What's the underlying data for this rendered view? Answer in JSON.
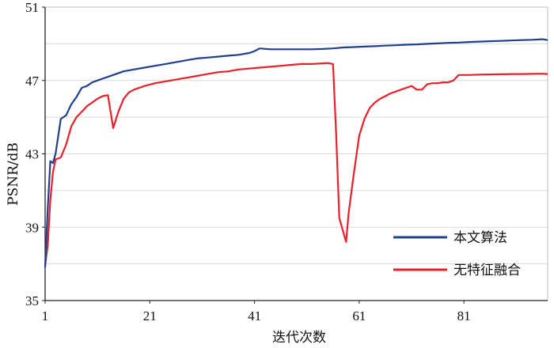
{
  "chart_data": {
    "type": "line",
    "title": "",
    "xlabel": "迭代次数",
    "ylabel": "PSNR/dB",
    "xlim": [
      1,
      97
    ],
    "ylim": [
      35,
      51
    ],
    "xticks": [
      1,
      21,
      41,
      61,
      81
    ],
    "yticks": [
      35,
      39,
      43,
      47,
      51
    ],
    "grid": "horizontal",
    "legend": "bottom-right",
    "series": [
      {
        "name": "本文算法",
        "color": "#1f3f8f",
        "points": [
          [
            1,
            36.8
          ],
          [
            1.5,
            40.0
          ],
          [
            2,
            42.6
          ],
          [
            2.5,
            42.5
          ],
          [
            3,
            43.0
          ],
          [
            4,
            44.9
          ],
          [
            5,
            45.1
          ],
          [
            6,
            45.7
          ],
          [
            7,
            46.1
          ],
          [
            8,
            46.6
          ],
          [
            9,
            46.7
          ],
          [
            10,
            46.9
          ],
          [
            12,
            47.1
          ],
          [
            14,
            47.3
          ],
          [
            16,
            47.5
          ],
          [
            18,
            47.6
          ],
          [
            20,
            47.7
          ],
          [
            22,
            47.8
          ],
          [
            24,
            47.9
          ],
          [
            26,
            48.0
          ],
          [
            28,
            48.1
          ],
          [
            30,
            48.2
          ],
          [
            32,
            48.25
          ],
          [
            34,
            48.3
          ],
          [
            36,
            48.35
          ],
          [
            38,
            48.4
          ],
          [
            40,
            48.5
          ],
          [
            41,
            48.6
          ],
          [
            42,
            48.75
          ],
          [
            44,
            48.7
          ],
          [
            46,
            48.7
          ],
          [
            48,
            48.7
          ],
          [
            50,
            48.7
          ],
          [
            52,
            48.7
          ],
          [
            54,
            48.72
          ],
          [
            56,
            48.75
          ],
          [
            58,
            48.8
          ],
          [
            60,
            48.82
          ],
          [
            62,
            48.85
          ],
          [
            64,
            48.87
          ],
          [
            66,
            48.9
          ],
          [
            68,
            48.92
          ],
          [
            70,
            48.95
          ],
          [
            72,
            48.97
          ],
          [
            74,
            49.0
          ],
          [
            76,
            49.02
          ],
          [
            78,
            49.05
          ],
          [
            80,
            49.07
          ],
          [
            82,
            49.1
          ],
          [
            84,
            49.12
          ],
          [
            86,
            49.14
          ],
          [
            88,
            49.16
          ],
          [
            90,
            49.18
          ],
          [
            92,
            49.2
          ],
          [
            94,
            49.22
          ],
          [
            96,
            49.25
          ],
          [
            97,
            49.2
          ]
        ]
      },
      {
        "name": "无特征融合",
        "color": "#e8202a",
        "points": [
          [
            1,
            36.9
          ],
          [
            1.5,
            38.0
          ],
          [
            2,
            40.5
          ],
          [
            2.5,
            42.0
          ],
          [
            3,
            42.7
          ],
          [
            4,
            42.8
          ],
          [
            5,
            43.5
          ],
          [
            6,
            44.5
          ],
          [
            7,
            45.0
          ],
          [
            8,
            45.3
          ],
          [
            9,
            45.6
          ],
          [
            10,
            45.8
          ],
          [
            11,
            46.0
          ],
          [
            12,
            46.15
          ],
          [
            13,
            46.2
          ],
          [
            14,
            44.4
          ],
          [
            15,
            45.3
          ],
          [
            16,
            46.0
          ],
          [
            17,
            46.35
          ],
          [
            18,
            46.5
          ],
          [
            20,
            46.7
          ],
          [
            22,
            46.85
          ],
          [
            24,
            46.95
          ],
          [
            26,
            47.05
          ],
          [
            28,
            47.15
          ],
          [
            30,
            47.25
          ],
          [
            32,
            47.35
          ],
          [
            34,
            47.45
          ],
          [
            36,
            47.5
          ],
          [
            38,
            47.6
          ],
          [
            40,
            47.65
          ],
          [
            42,
            47.7
          ],
          [
            44,
            47.75
          ],
          [
            46,
            47.8
          ],
          [
            48,
            47.85
          ],
          [
            50,
            47.9
          ],
          [
            52,
            47.9
          ],
          [
            55,
            47.95
          ],
          [
            56,
            47.9
          ],
          [
            56.6,
            44.0
          ],
          [
            57.2,
            39.5
          ],
          [
            58.5,
            38.2
          ],
          [
            59,
            39.8
          ],
          [
            60,
            42.0
          ],
          [
            61,
            44.0
          ],
          [
            62,
            44.9
          ],
          [
            63,
            45.5
          ],
          [
            64,
            45.8
          ],
          [
            65,
            46.0
          ],
          [
            66,
            46.15
          ],
          [
            67,
            46.3
          ],
          [
            68,
            46.4
          ],
          [
            69,
            46.5
          ],
          [
            70,
            46.6
          ],
          [
            71,
            46.7
          ],
          [
            72,
            46.5
          ],
          [
            73,
            46.5
          ],
          [
            74,
            46.8
          ],
          [
            75,
            46.85
          ],
          [
            76,
            46.85
          ],
          [
            77,
            46.9
          ],
          [
            78,
            46.9
          ],
          [
            79,
            47.0
          ],
          [
            80,
            47.3
          ],
          [
            82,
            47.3
          ],
          [
            84,
            47.32
          ],
          [
            86,
            47.33
          ],
          [
            88,
            47.34
          ],
          [
            90,
            47.35
          ],
          [
            92,
            47.35
          ],
          [
            94,
            47.36
          ],
          [
            96,
            47.37
          ],
          [
            97,
            47.35
          ]
        ]
      }
    ]
  }
}
